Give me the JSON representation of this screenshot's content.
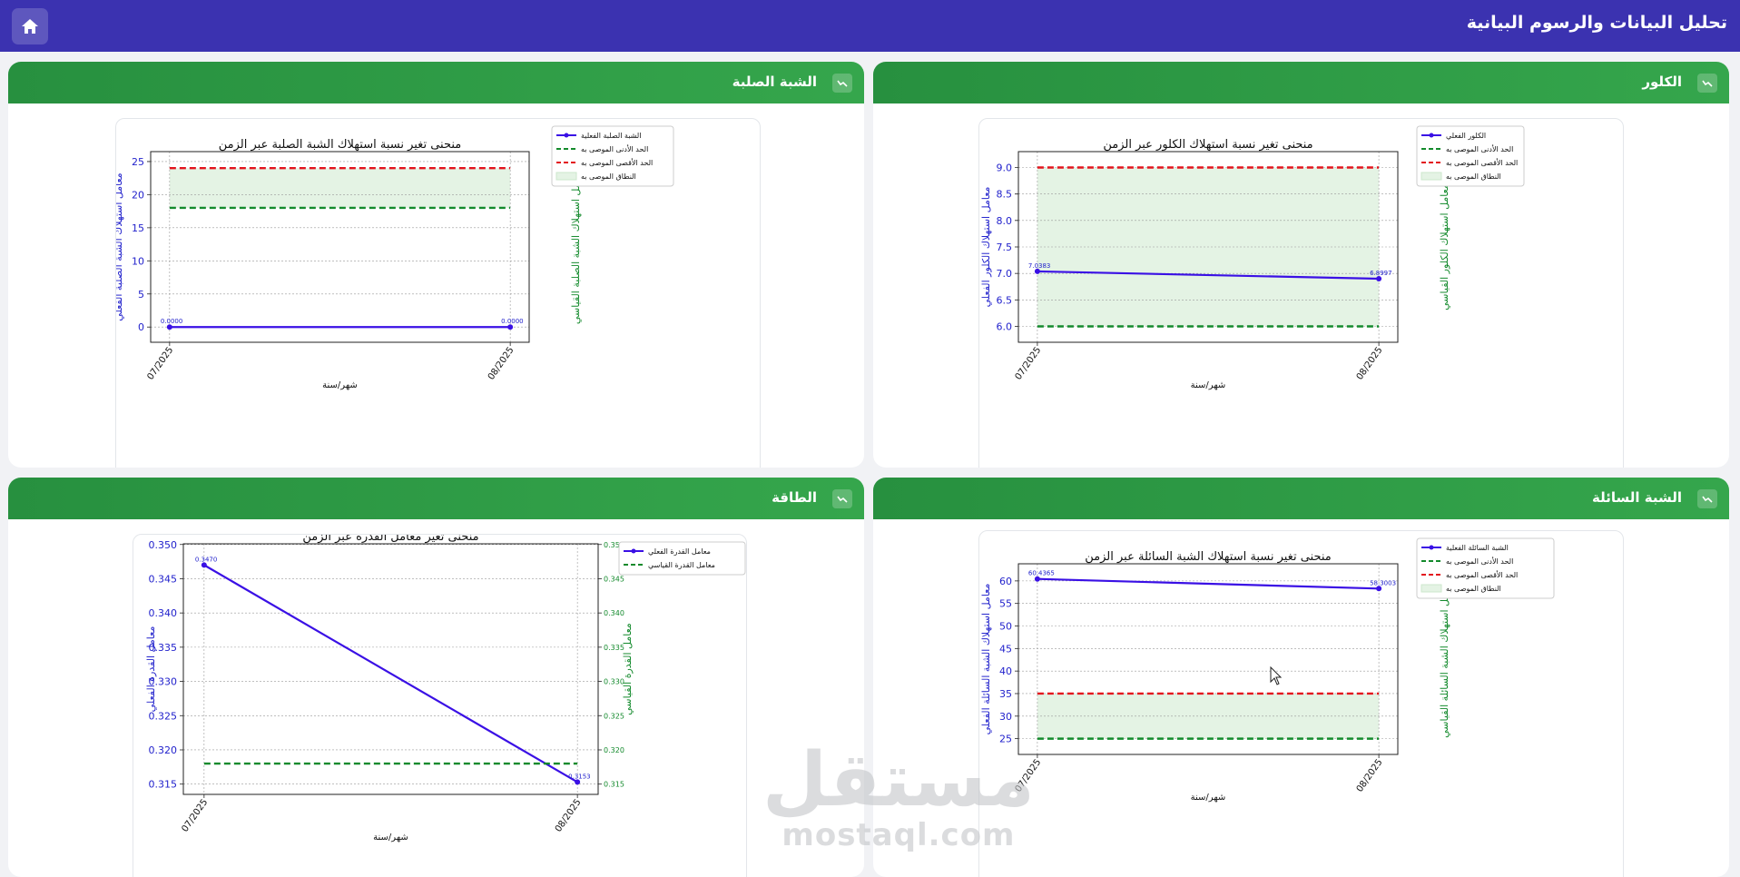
{
  "app": {
    "title": "تحليل البيانات والرسوم البيانية",
    "home_icon": "home-icon"
  },
  "panels": [
    {
      "id": "chlorine",
      "title": "الكلور",
      "icon": "chart-line-icon"
    },
    {
      "id": "solid",
      "title": "الشبة الصلبة",
      "icon": "chart-line-icon"
    },
    {
      "id": "liquid",
      "title": "الشبة السائلة",
      "icon": "chart-line-icon"
    },
    {
      "id": "power",
      "title": "الطاقة",
      "icon": "chart-line-icon"
    }
  ],
  "chart_data": [
    {
      "panel": "chlorine",
      "type": "line",
      "title": "منحنى تغير نسبة استهلاك الكلور عبر الزمن",
      "xlabel": "شهر/سنة",
      "ylabel": "معامل استهلاك الكلور الفعلي",
      "ylabel_right": "معامل استهلاك الكلور القياسي",
      "categories": [
        "07/2025",
        "08/2025"
      ],
      "ylim": [
        5.7,
        9.3
      ],
      "yticks": [
        "6.0",
        "6.5",
        "7.0",
        "7.5",
        "8.0",
        "8.5",
        "9.0"
      ],
      "series": [
        {
          "name": "الكلور الفعلي",
          "values": [
            7.0383,
            6.8997
          ],
          "labels": [
            "7.0383",
            "6.8997"
          ]
        },
        {
          "name": "الحد الأدنى الموصى به",
          "values": [
            6.0,
            6.0
          ]
        },
        {
          "name": "الحد الأقصى الموصى به",
          "values": [
            9.0,
            9.0
          ]
        }
      ],
      "band": {
        "name": "النطاق الموصى به",
        "range": [
          6.0,
          9.0
        ]
      },
      "legend_position": "top-right",
      "grid": true
    },
    {
      "panel": "solid",
      "type": "line",
      "title": "منحنى تغير نسبة استهلاك الشبة الصلبة عبر الزمن",
      "xlabel": "شهر/سنة",
      "ylabel": "معامل استهلاك الشبة الصلبة الفعلي",
      "ylabel_right": "معامل استهلاك الشبة الصلبة القياسي",
      "categories": [
        "07/2025",
        "08/2025"
      ],
      "ylim": [
        -2.3,
        26.5
      ],
      "yticks": [
        "0",
        "5",
        "10",
        "15",
        "20",
        "25"
      ],
      "series": [
        {
          "name": "الشبة الصلبة الفعلية",
          "values": [
            0.0,
            0.0
          ],
          "labels": [
            "0.0000",
            "0.0000"
          ]
        },
        {
          "name": "الحد الأدنى الموصى به",
          "values": [
            18,
            18
          ]
        },
        {
          "name": "الحد الأقصى الموصى به",
          "values": [
            24,
            24
          ]
        }
      ],
      "band": {
        "name": "النطاق الموصى به",
        "range": [
          18,
          24
        ]
      },
      "legend_position": "top-right",
      "grid": true
    },
    {
      "panel": "liquid",
      "type": "line",
      "title": "منحنى تغير نسبة استهلاك الشبة السائلة عبر الزمن",
      "xlabel": "شهر/سنة",
      "ylabel": "معامل استهلاك الشبة السائلة الفعلي",
      "ylabel_right": "معامل استهلاك الشبة السائلة القياسي",
      "categories": [
        "07/2025",
        "08/2025"
      ],
      "ylim": [
        21.5,
        63.8
      ],
      "yticks": [
        "25",
        "30",
        "35",
        "40",
        "45",
        "50",
        "55",
        "60"
      ],
      "series": [
        {
          "name": "الشبة السائلة الفعلية",
          "values": [
            60.4365,
            58.3003
          ],
          "labels": [
            "60.4365",
            "58.3003"
          ]
        },
        {
          "name": "الحد الأدنى الموصى به",
          "values": [
            25,
            25
          ]
        },
        {
          "name": "الحد الأقصى الموصى به",
          "values": [
            35,
            35
          ]
        }
      ],
      "band": {
        "name": "النطاق الموصى به",
        "range": [
          25,
          35
        ]
      },
      "legend_position": "top-right",
      "grid": true
    },
    {
      "panel": "power",
      "type": "line",
      "title": "منحنى تغير معامل القدرة عبر الزمن",
      "xlabel": "شهر/سنة",
      "ylabel": "معامل القدرة الفعلي",
      "ylabel_right": "معامل القدرة القياسي",
      "categories": [
        "07/2025",
        "08/2025"
      ],
      "ylim": [
        0.3135,
        0.3501
      ],
      "yticks": [
        "0.315",
        "0.320",
        "0.325",
        "0.330",
        "0.335",
        "0.340",
        "0.345",
        "0.350"
      ],
      "yticks_right": [
        "0.315",
        "0.320",
        "0.325",
        "0.330",
        "0.335",
        "0.340",
        "0.345",
        "0.350"
      ],
      "series": [
        {
          "name": "معامل القدرة الفعلي",
          "values": [
            0.347,
            0.3153
          ],
          "labels": [
            "0.3470",
            "0.3153"
          ]
        },
        {
          "name": "معامل القدرة القياسي",
          "values": [
            0.318,
            0.318
          ]
        }
      ],
      "legend_position": "top-right",
      "grid": true
    }
  ],
  "watermark": {
    "arabic": "مستقل",
    "latin": "mostaql.com"
  },
  "colors": {
    "header": "#3b32b0",
    "panel_header": "#2e9e47",
    "actual": "#3a10e5",
    "min": "#138a2c",
    "max": "#e3141d",
    "band": "#e4f3e4"
  }
}
